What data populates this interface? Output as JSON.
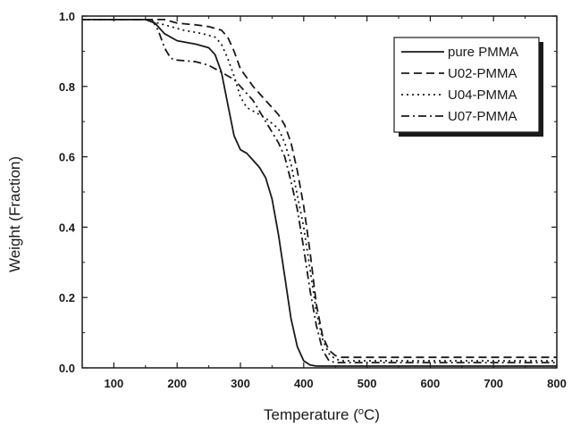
{
  "chart_data": {
    "type": "line",
    "title": "",
    "xlabel_main": "Temperature (",
    "xlabel_sup": "o",
    "xlabel_end": "C)",
    "ylabel": "Weight (Fraction)",
    "xlim": [
      50,
      800
    ],
    "ylim": [
      0.0,
      1.0
    ],
    "xticks": [
      100,
      200,
      300,
      400,
      500,
      600,
      700,
      800
    ],
    "yticks": [
      0.0,
      0.2,
      0.4,
      0.6,
      0.8,
      1.0
    ],
    "xtick_labels": [
      "100",
      "200",
      "300",
      "400",
      "500",
      "600",
      "700",
      "800"
    ],
    "ytick_labels": [
      "0.0",
      "0.2",
      "0.4",
      "0.6",
      "0.8",
      "1.0"
    ],
    "grid": false,
    "legend_position": "top-right",
    "colors": {
      "line": "#1a1a1a",
      "axis": "#1a1a1a",
      "background": "#ffffff"
    },
    "series": [
      {
        "name": "pure PMMA",
        "style": "solid",
        "x": [
          50,
          150,
          165,
          180,
          200,
          230,
          250,
          260,
          270,
          280,
          290,
          300,
          310,
          320,
          330,
          340,
          350,
          360,
          370,
          380,
          390,
          400,
          410,
          420,
          440,
          500,
          600,
          700,
          800
        ],
        "y": [
          0.99,
          0.99,
          0.98,
          0.95,
          0.93,
          0.92,
          0.91,
          0.89,
          0.84,
          0.75,
          0.66,
          0.62,
          0.61,
          0.59,
          0.57,
          0.54,
          0.48,
          0.38,
          0.26,
          0.14,
          0.06,
          0.02,
          0.008,
          0.005,
          0.005,
          0.005,
          0.005,
          0.005,
          0.005
        ]
      },
      {
        "name": "U02-PMMA",
        "style": "dashed",
        "x": [
          50,
          150,
          180,
          200,
          230,
          250,
          270,
          280,
          290,
          300,
          320,
          340,
          350,
          360,
          370,
          380,
          390,
          400,
          410,
          420,
          430,
          440,
          450,
          460,
          500,
          600,
          700,
          800
        ],
        "y": [
          0.99,
          0.99,
          0.99,
          0.98,
          0.975,
          0.97,
          0.96,
          0.94,
          0.9,
          0.85,
          0.8,
          0.76,
          0.74,
          0.72,
          0.69,
          0.64,
          0.56,
          0.46,
          0.33,
          0.18,
          0.09,
          0.05,
          0.035,
          0.03,
          0.03,
          0.03,
          0.03,
          0.03
        ]
      },
      {
        "name": "U04-PMMA",
        "style": "dotted",
        "x": [
          50,
          150,
          170,
          190,
          210,
          240,
          260,
          270,
          280,
          290,
          300,
          310,
          320,
          340,
          360,
          370,
          380,
          390,
          400,
          410,
          420,
          430,
          440,
          450,
          460,
          500,
          600,
          700,
          800
        ],
        "y": [
          0.99,
          0.99,
          0.98,
          0.97,
          0.96,
          0.95,
          0.94,
          0.92,
          0.88,
          0.83,
          0.77,
          0.74,
          0.73,
          0.71,
          0.68,
          0.64,
          0.58,
          0.49,
          0.4,
          0.28,
          0.16,
          0.08,
          0.04,
          0.025,
          0.02,
          0.02,
          0.02,
          0.02,
          0.02
        ]
      },
      {
        "name": "U07-PMMA",
        "style": "dashdot",
        "x": [
          50,
          160,
          170,
          180,
          190,
          200,
          230,
          250,
          260,
          270,
          280,
          290,
          300,
          320,
          340,
          350,
          360,
          370,
          380,
          390,
          400,
          410,
          420,
          430,
          440,
          450,
          500,
          600,
          700,
          800
        ],
        "y": [
          0.99,
          0.99,
          0.96,
          0.91,
          0.88,
          0.875,
          0.87,
          0.86,
          0.85,
          0.84,
          0.83,
          0.82,
          0.8,
          0.76,
          0.7,
          0.67,
          0.64,
          0.6,
          0.53,
          0.45,
          0.34,
          0.22,
          0.12,
          0.05,
          0.02,
          0.015,
          0.015,
          0.015,
          0.015,
          0.015
        ]
      }
    ]
  }
}
